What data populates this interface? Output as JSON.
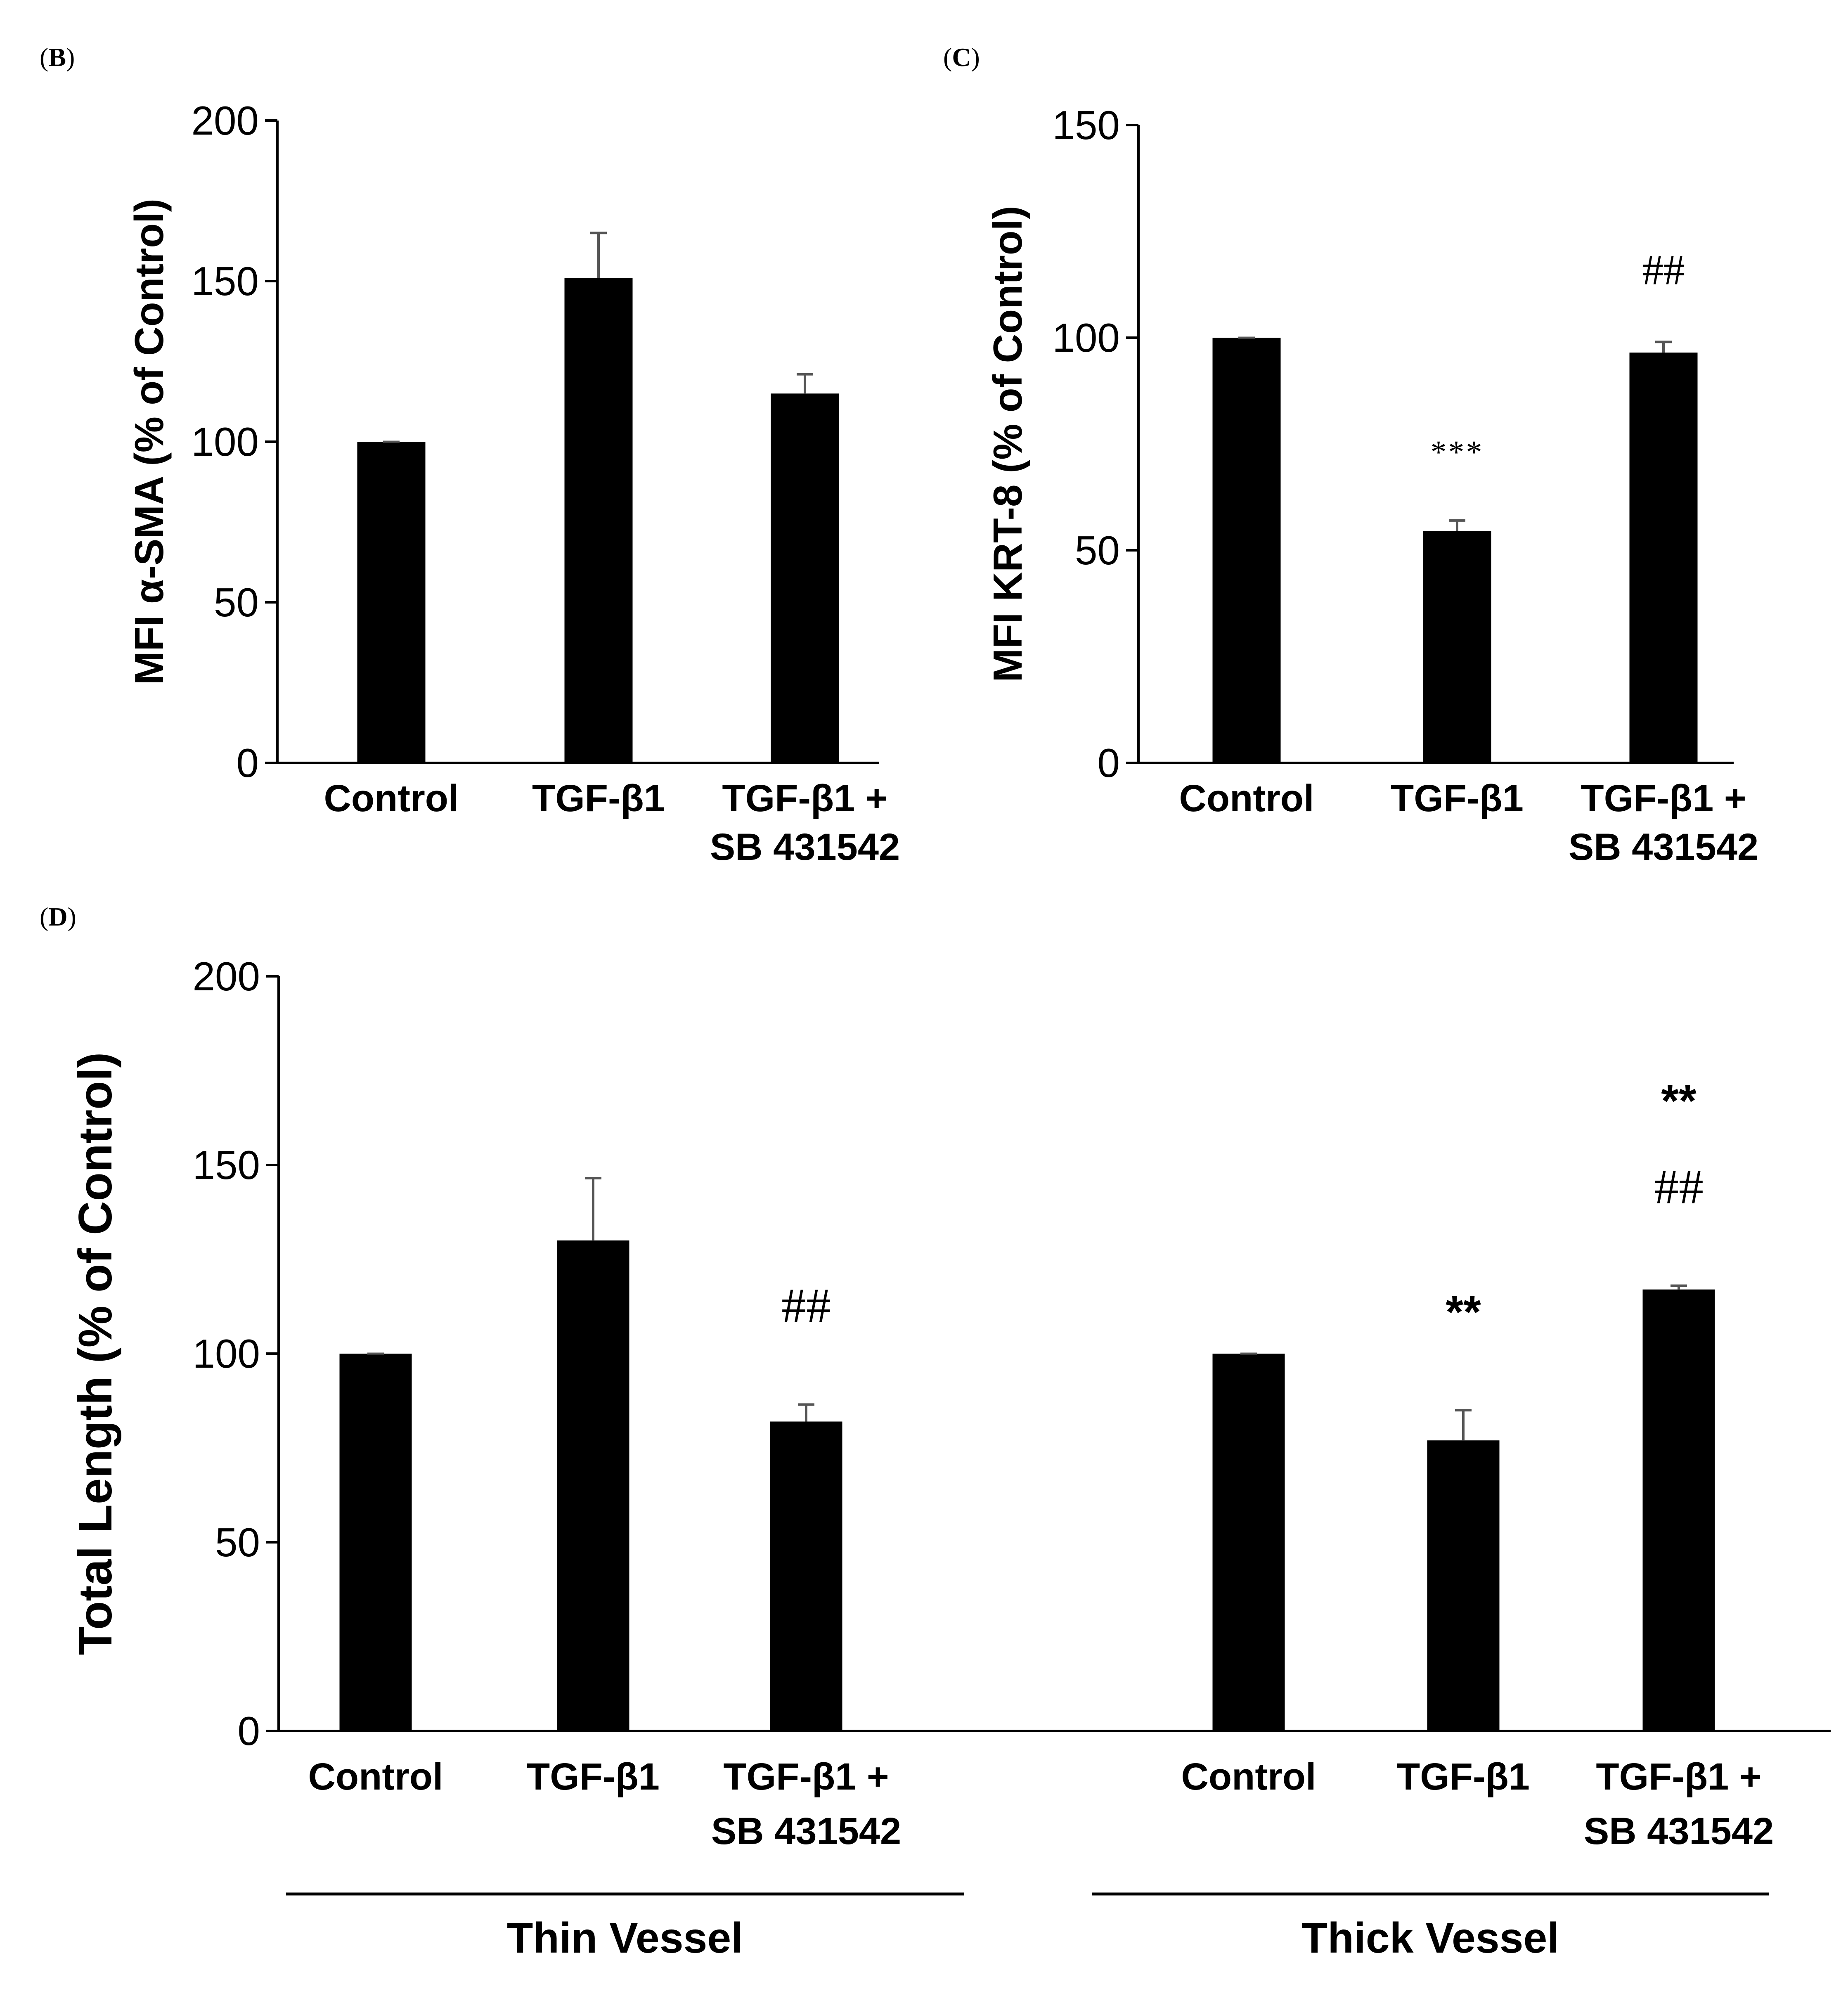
{
  "chart_data": [
    {
      "panel": "B",
      "type": "bar",
      "ylabel": "MFI α-SMA (% of Control)",
      "ylim": [
        0,
        200
      ],
      "yticks": [
        "0",
        "50",
        "100",
        "150",
        "200"
      ],
      "categories": [
        "Control",
        "TGF-β1",
        "TGF-β1 + SB 431542"
      ],
      "values": [
        100,
        151,
        115
      ],
      "errors": [
        0,
        14,
        6
      ],
      "annotations": [
        "",
        "",
        ""
      ],
      "bar_color": "#000000",
      "error_color": "#555555"
    },
    {
      "panel": "C",
      "type": "bar",
      "ylabel": "MFI KRT-8 (% of Control)",
      "ylim": [
        0,
        150
      ],
      "yticks": [
        "0",
        "50",
        "100",
        "150"
      ],
      "categories": [
        "Control",
        "TGF-β1",
        "TGF-β1 + SB 431542"
      ],
      "values": [
        100,
        54.5,
        96.5
      ],
      "errors": [
        0,
        2.5,
        2.5
      ],
      "annotations": [
        "",
        "***",
        "##"
      ],
      "bar_color": "#000000",
      "error_color": "#555555"
    },
    {
      "panel": "D",
      "type": "bar",
      "ylabel": "Total Length (% of Control)",
      "ylim": [
        0,
        200
      ],
      "yticks": [
        "0",
        "50",
        "100",
        "150",
        "200"
      ],
      "groups": [
        {
          "name": "Thin Vessel",
          "categories": [
            "Control",
            "TGF-β1",
            "TGF-β1 + SB 431542"
          ],
          "values": [
            100,
            130,
            82
          ],
          "errors": [
            0,
            16.5,
            4.5
          ],
          "annotations": [
            [],
            [],
            [
              "##"
            ]
          ]
        },
        {
          "name": "Thick Vessel",
          "categories": [
            "Control",
            "TGF-β1",
            "TGF-β1 + SB 431542"
          ],
          "values": [
            100,
            77,
            117
          ],
          "errors": [
            0,
            8,
            1
          ],
          "annotations": [
            [],
            [
              "**"
            ],
            [
              "**",
              "##"
            ]
          ]
        }
      ],
      "bar_color": "#000000",
      "error_color": "#555555"
    }
  ],
  "panel_labels": {
    "B": "B",
    "C": "C",
    "D": "D"
  }
}
